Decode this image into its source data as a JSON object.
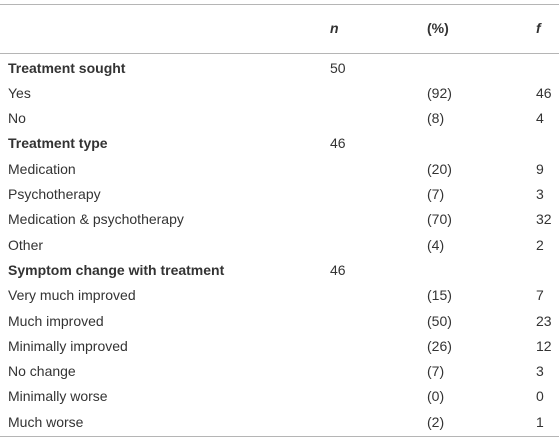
{
  "table": {
    "columns": [
      "n",
      "(%)",
      "f"
    ],
    "sections": [
      {
        "title": "Treatment sought",
        "n": 50,
        "items": [
          {
            "label": "Yes",
            "pct": "(92)",
            "f": 46
          },
          {
            "label": "No",
            "pct": "(8)",
            "f": 4
          }
        ]
      },
      {
        "title": "Treatment type",
        "n": 46,
        "items": [
          {
            "label": "Medication",
            "pct": "(20)",
            "f": 9
          },
          {
            "label": "Psychotherapy",
            "pct": "(7)",
            "f": 3
          },
          {
            "label": "Medication & psychotherapy",
            "pct": "(70)",
            "f": 32
          },
          {
            "label": "Other",
            "pct": "(4)",
            "f": 2
          }
        ]
      },
      {
        "title": "Symptom change with treatment",
        "n": 46,
        "items": [
          {
            "label": "Very much improved",
            "pct": "(15)",
            "f": 7
          },
          {
            "label": "Much improved",
            "pct": "(50)",
            "f": 23
          },
          {
            "label": "Minimally improved",
            "pct": "(26)",
            "f": 12
          },
          {
            "label": "No change",
            "pct": "(7)",
            "f": 3
          },
          {
            "label": "Minimally worse",
            "pct": "(0)",
            "f": 0
          },
          {
            "label": "Much worse",
            "pct": "(2)",
            "f": 1
          }
        ]
      }
    ]
  }
}
